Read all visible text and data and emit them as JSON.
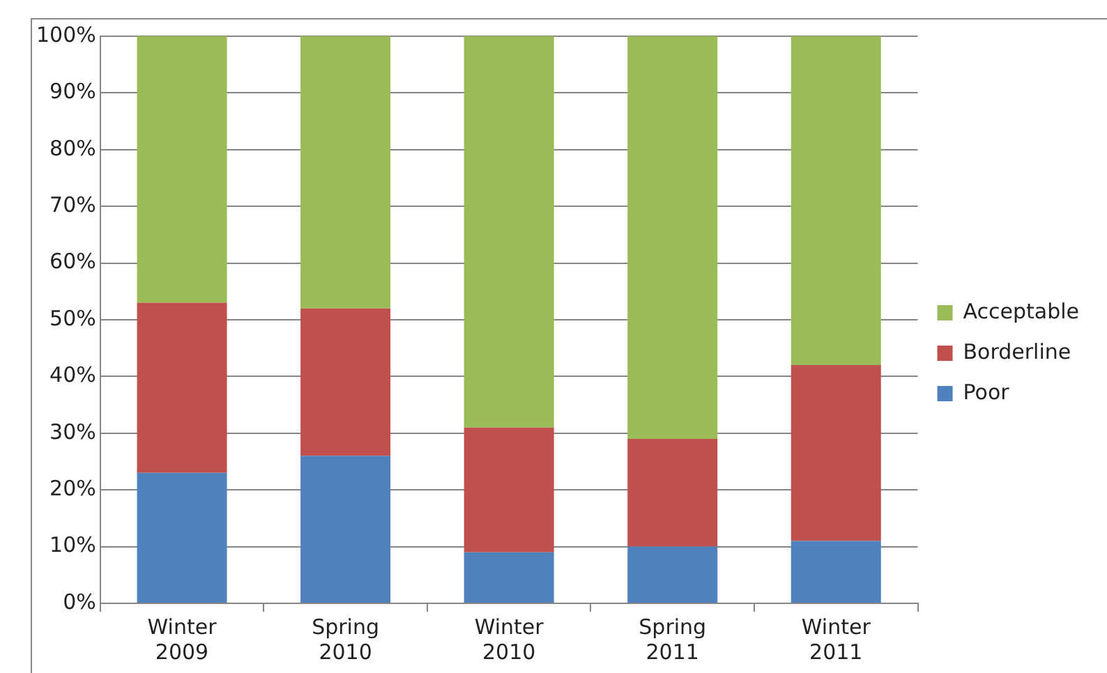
{
  "chart_data": {
    "type": "bar",
    "stacked": true,
    "categories": [
      "Winter 2009",
      "Spring 2010",
      "Winter 2010",
      "Spring 2011",
      "Winter 2011"
    ],
    "series": [
      {
        "name": "Poor",
        "color": "#4f81bd",
        "values": [
          23,
          26,
          9,
          10,
          11
        ]
      },
      {
        "name": "Borderline",
        "color": "#c0504d",
        "values": [
          30,
          26,
          22,
          19,
          31
        ]
      },
      {
        "name": "Acceptable",
        "color": "#9bbb59",
        "values": [
          47,
          48,
          69,
          71,
          58
        ]
      }
    ],
    "ylim": [
      0,
      100
    ],
    "yticks": [
      {
        "value": 0,
        "label": "0%"
      },
      {
        "value": 10,
        "label": "10%"
      },
      {
        "value": 20,
        "label": "20%"
      },
      {
        "value": 30,
        "label": "30%"
      },
      {
        "value": 40,
        "label": "40%"
      },
      {
        "value": 50,
        "label": "50%"
      },
      {
        "value": 60,
        "label": "60%"
      },
      {
        "value": 70,
        "label": "70%"
      },
      {
        "value": 80,
        "label": "80%"
      },
      {
        "value": 90,
        "label": "90%"
      },
      {
        "value": 100,
        "label": "100%"
      }
    ],
    "grid": "y",
    "legend": "right"
  }
}
